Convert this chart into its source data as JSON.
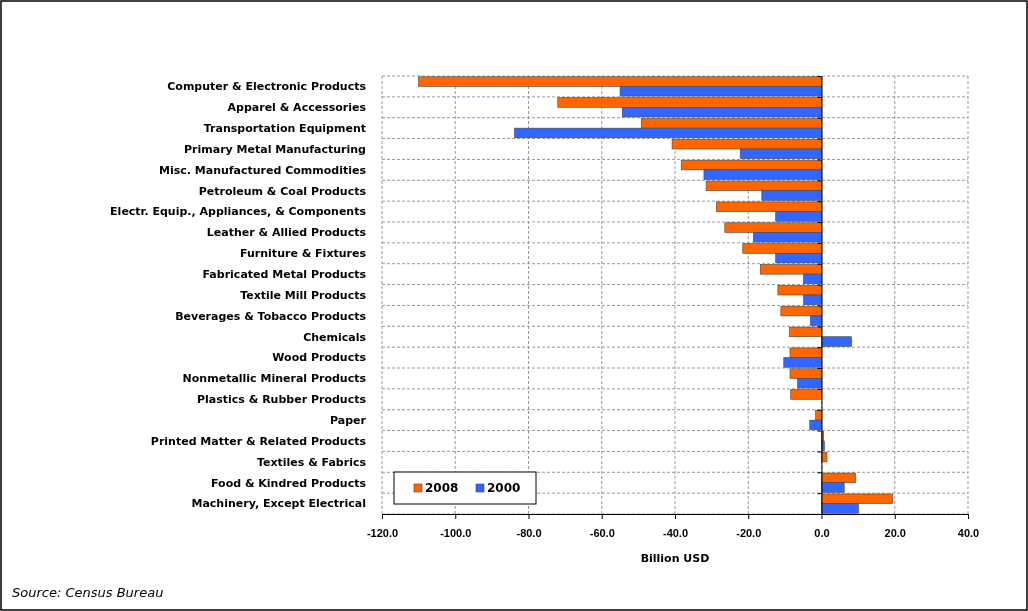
{
  "chart_data": {
    "type": "bar",
    "orientation": "horizontal",
    "xlabel": "Billion USD",
    "categories": [
      "Computer & Electronic Products",
      "Apparel & Accessories",
      "Transportation Equipment",
      "Primary Metal Manufacturing",
      "Misc. Manufactured Commodities",
      "Petroleum & Coal Products",
      "Electr. Equip., Appliances, & Components",
      "Leather & Allied Products",
      "Furniture & Fixtures",
      "Fabricated Metal Products",
      "Textile Mill Products",
      "Beverages & Tobacco Products",
      "Chemicals",
      "Wood Products",
      "Nonmetallic Mineral Products",
      "Plastics & Rubber Products",
      "Paper",
      "Printed Matter & Related Products",
      "Textiles & Fabrics",
      "Food & Kindred Products",
      "Machinery, Except Electrical"
    ],
    "series": [
      {
        "name": "2008",
        "color": "#ff6600",
        "values": [
          -110,
          -72,
          -49.2,
          -40.8,
          -38.3,
          -31.5,
          -28.7,
          -26.4,
          -21.5,
          -16.7,
          -11.9,
          -11.1,
          -8.7,
          -8.6,
          -8.6,
          -8.4,
          -1.6,
          0.6,
          1.5,
          9.3,
          19.4
        ]
      },
      {
        "name": "2000",
        "color": "#3366ff",
        "values": [
          -55,
          -54.4,
          -83.8,
          -22.2,
          -32.1,
          -16.3,
          -12.5,
          -18.6,
          -12.5,
          -4.9,
          -4.9,
          -3,
          8.2,
          -10.3,
          -6.5,
          0,
          -3.2,
          0.8,
          0,
          6.2,
          10.1
        ]
      }
    ],
    "xlim": [
      -120,
      40
    ],
    "xticks": [
      {
        "value": -120,
        "label": "-120.0"
      },
      {
        "value": -100,
        "label": "-100.0"
      },
      {
        "value": -80,
        "label": "-80.0"
      },
      {
        "value": -60,
        "label": "-60.0"
      },
      {
        "value": -40,
        "label": "-40.0"
      },
      {
        "value": -20,
        "label": "-20.0"
      },
      {
        "value": 0,
        "label": "0.0"
      },
      {
        "value": 20,
        "label": "20.0"
      },
      {
        "value": 40,
        "label": "40.0"
      }
    ],
    "grid": true,
    "legend": "bottom left",
    "annotations": [
      "Source: Census Bureau"
    ]
  }
}
